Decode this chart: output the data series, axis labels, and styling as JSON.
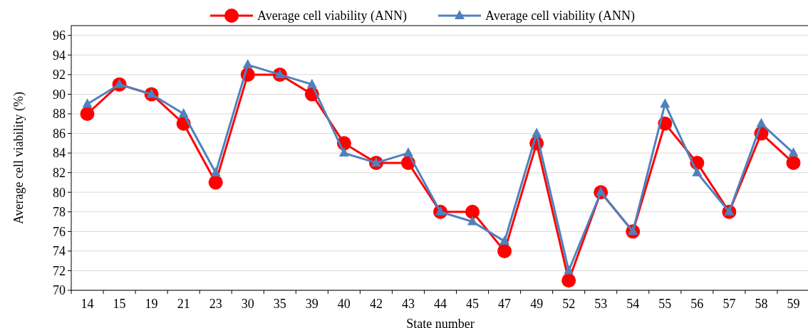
{
  "chart_data": {
    "type": "line",
    "xlabel": "State number",
    "ylabel": "Average cell viability (%)",
    "categories": [
      "14",
      "15",
      "19",
      "21",
      "23",
      "30",
      "35",
      "39",
      "40",
      "42",
      "43",
      "44",
      "45",
      "47",
      "49",
      "52",
      "53",
      "54",
      "55",
      "56",
      "57",
      "58",
      "59"
    ],
    "series": [
      {
        "name": "Average cell viability (ANN)",
        "color": "#ff0000",
        "marker": "circle",
        "values": [
          88,
          91,
          90,
          87,
          81,
          92,
          92,
          90,
          85,
          83,
          83,
          78,
          78,
          74,
          85,
          71,
          80,
          76,
          87,
          83,
          78,
          86,
          83
        ]
      },
      {
        "name": "Average cell viability (ANN)",
        "color": "#4f81bd",
        "marker": "triangle",
        "values": [
          89,
          91,
          90,
          88,
          82,
          93,
          92,
          91,
          84,
          83,
          84,
          78,
          77,
          75,
          86,
          72,
          80,
          76,
          89,
          82,
          78,
          87,
          84
        ]
      }
    ],
    "ylim": [
      70,
      97
    ],
    "yticks": [
      70,
      72,
      74,
      76,
      78,
      80,
      82,
      84,
      86,
      88,
      90,
      92,
      94,
      96
    ],
    "grid": "y",
    "legend": "top",
    "line_style": "solid"
  }
}
